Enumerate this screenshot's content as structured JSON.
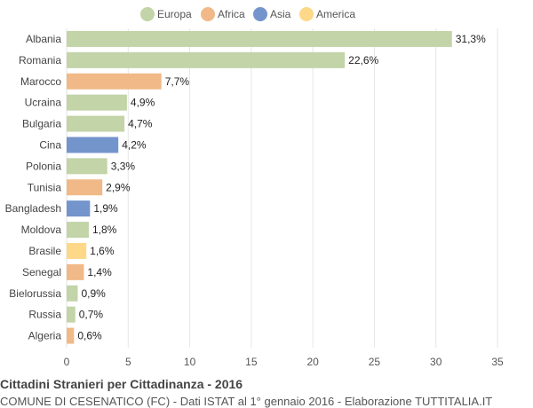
{
  "chart_data": {
    "type": "bar",
    "orientation": "horizontal",
    "title": "Cittadini Stranieri per Cittadinanza - 2016",
    "subtitle": "COMUNE DI CESENATICO (FC) - Dati ISTAT al 1° gennaio 2016 - Elaborazione TUTTITALIA.IT",
    "legend": [
      {
        "name": "Europa",
        "color": "#c2d4a8"
      },
      {
        "name": "Africa",
        "color": "#f0b987"
      },
      {
        "name": "Asia",
        "color": "#7494cc"
      },
      {
        "name": "America",
        "color": "#fdd888"
      }
    ],
    "legend_position": "top-center",
    "categories": [
      "Albania",
      "Romania",
      "Marocco",
      "Ucraina",
      "Bulgaria",
      "Cina",
      "Polonia",
      "Tunisia",
      "Bangladesh",
      "Moldova",
      "Brasile",
      "Senegal",
      "Bielorussia",
      "Russia",
      "Algeria"
    ],
    "values": [
      31.3,
      22.6,
      7.7,
      4.9,
      4.7,
      4.2,
      3.3,
      2.9,
      1.9,
      1.8,
      1.6,
      1.4,
      0.9,
      0.7,
      0.6
    ],
    "value_labels": [
      "31,3%",
      "22,6%",
      "7,7%",
      "4,9%",
      "4,7%",
      "4,2%",
      "3,3%",
      "2,9%",
      "1,9%",
      "1,8%",
      "1,6%",
      "1,4%",
      "0,9%",
      "0,7%",
      "0,6%"
    ],
    "groups": [
      "Europa",
      "Europa",
      "Africa",
      "Europa",
      "Europa",
      "Asia",
      "Europa",
      "Africa",
      "Asia",
      "Europa",
      "America",
      "Africa",
      "Europa",
      "Europa",
      "Africa"
    ],
    "xlim": [
      0,
      35
    ],
    "xticks": [
      0,
      5,
      10,
      15,
      20,
      25,
      30,
      35
    ],
    "grid": true
  }
}
